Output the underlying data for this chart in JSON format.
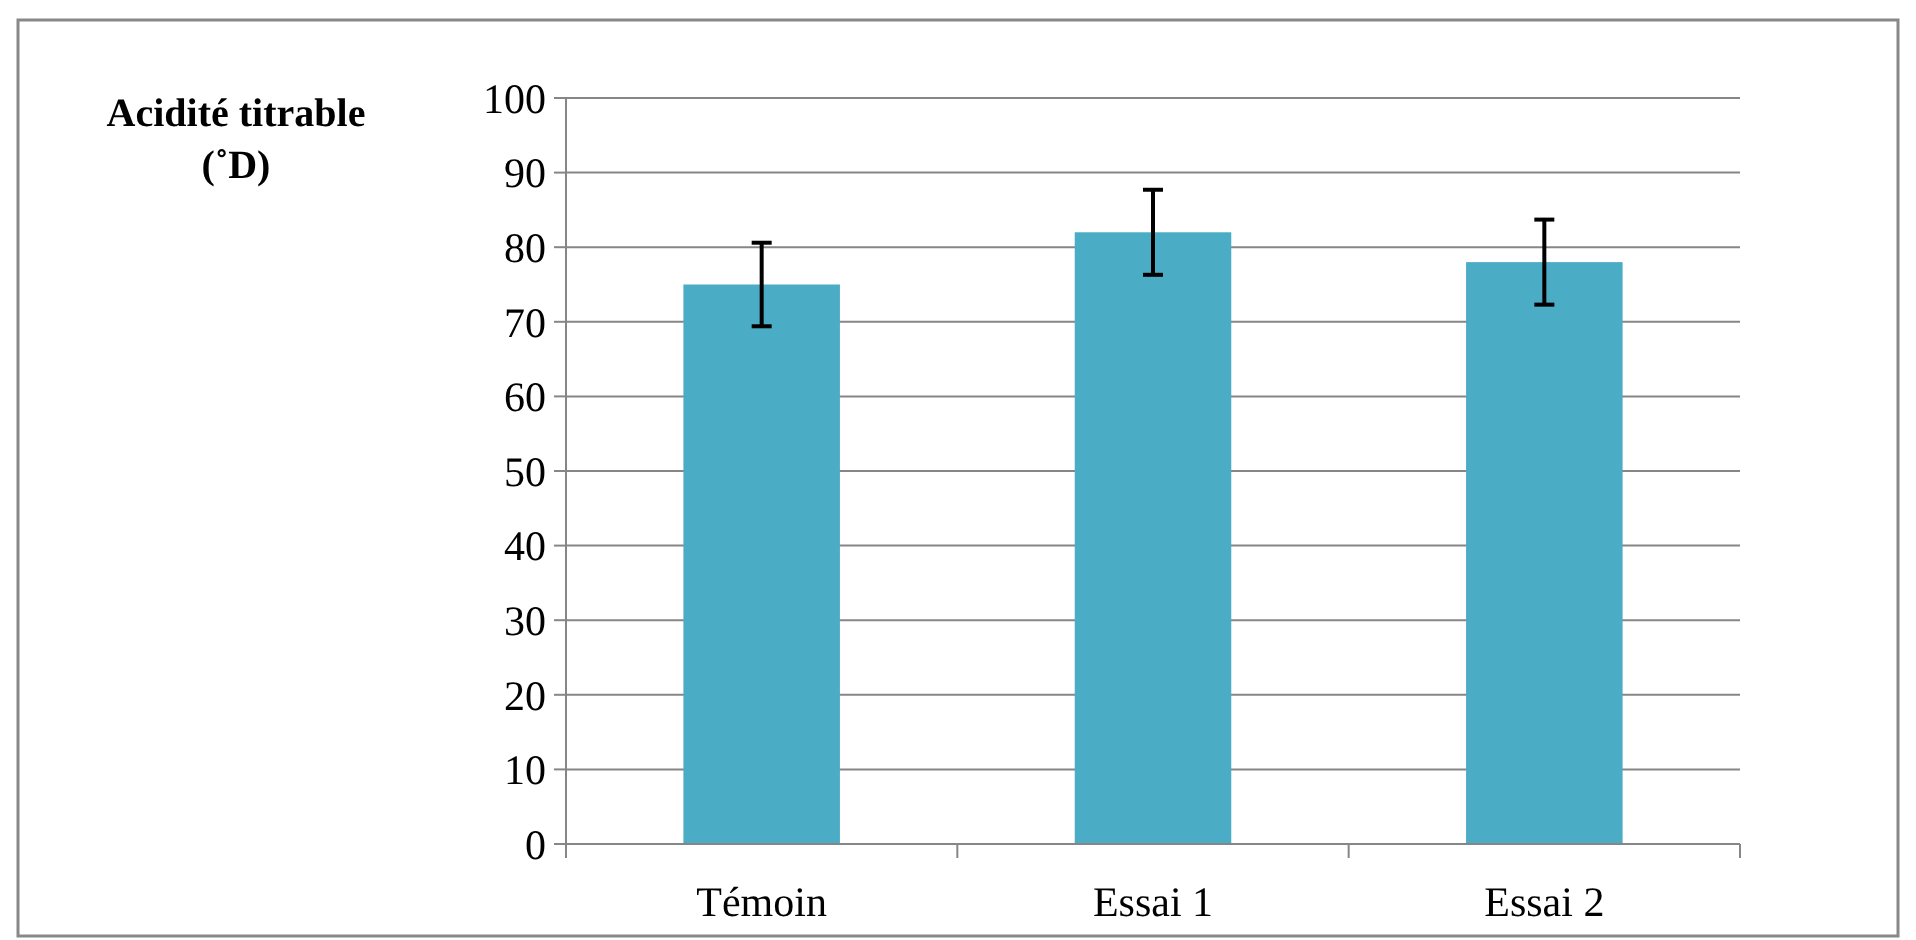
{
  "chart_data": {
    "type": "bar",
    "ylabel": "Acidité titrable (˚D)",
    "categories": [
      "Témoin",
      "Essai 1",
      "Essai 2"
    ],
    "values": [
      75,
      82,
      78
    ],
    "errors": [
      5.6,
      5.7,
      5.7
    ],
    "color": "#4bacc6",
    "ylim": [
      0,
      100
    ],
    "yticks": [
      0,
      10,
      20,
      30,
      40,
      50,
      60,
      70,
      80,
      90,
      100
    ],
    "grid": "y"
  }
}
